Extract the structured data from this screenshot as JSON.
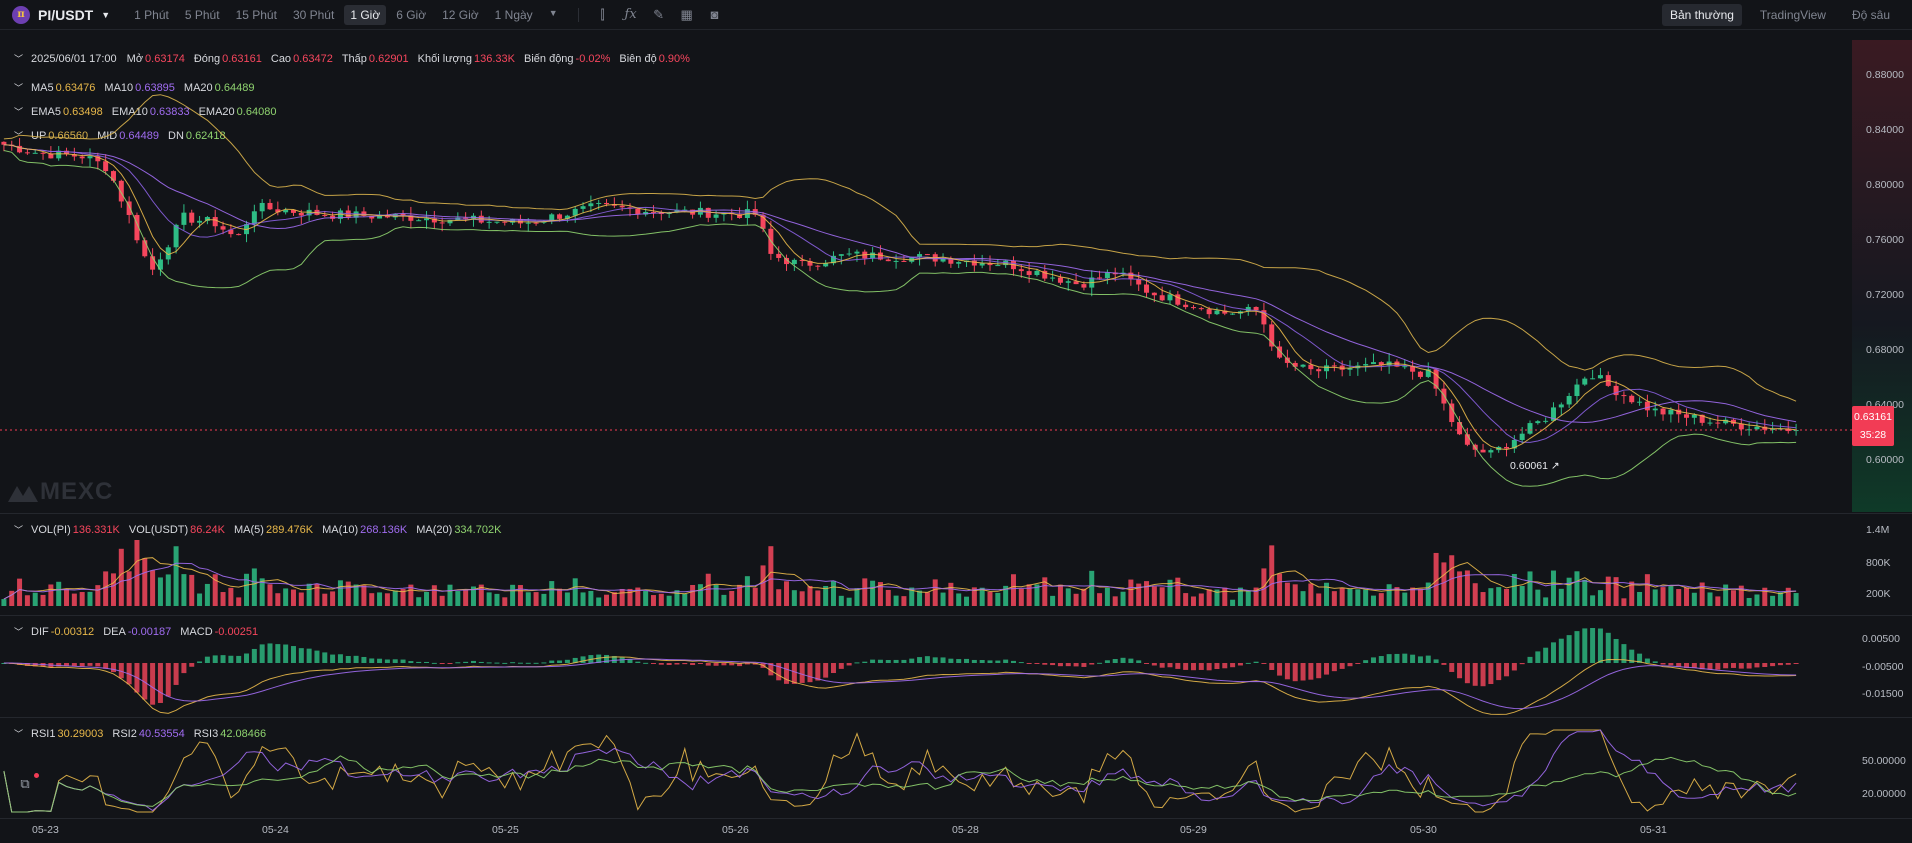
{
  "toolbar": {
    "pair": "PI/USDT",
    "logo_glyph": "π",
    "intervals": [
      "1 Phút",
      "5 Phút",
      "15 Phút",
      "30 Phút",
      "1 Giờ",
      "6 Giờ",
      "12 Giờ",
      "1 Ngày"
    ],
    "active_interval": "1 Giờ",
    "icons": [
      "candle-type-icon",
      "indicator-fx-icon",
      "draw-pencil-icon",
      "layout-grid-icon",
      "camera-icon"
    ],
    "views": [
      "Bản thường",
      "TradingView",
      "Độ sâu"
    ],
    "active_view": "Bản thường"
  },
  "ohlc": {
    "date": "2025/06/01 17:00",
    "open_label": "Mở",
    "open": "0.63174",
    "close_label": "Đóng",
    "close": "0.63161",
    "high_label": "Cao",
    "high": "0.63472",
    "low_label": "Thấp",
    "low": "0.62901",
    "volume_label": "Khối lượng",
    "volume": "136.33K",
    "change_label": "Biến động",
    "change": "-0.02%",
    "amplitude_label": "Biên độ",
    "amplitude": "0.90%"
  },
  "ma": {
    "ma5_label": "MA5",
    "ma5": "0.63476",
    "ma10_label": "MA10",
    "ma10": "0.63895",
    "ma20_label": "MA20",
    "ma20": "0.64489"
  },
  "ema": {
    "ema5_label": "EMA5",
    "ema5": "0.63498",
    "ema10_label": "EMA10",
    "ema10": "0.63833",
    "ema20_label": "EMA20",
    "ema20": "0.64080"
  },
  "boll": {
    "up_label": "UP",
    "up": "0.66560",
    "mid_label": "MID",
    "mid": "0.64489",
    "dn_label": "DN",
    "dn": "0.62418"
  },
  "vol": {
    "vol_pi_label": "VOL(PI)",
    "vol_pi": "136.331K",
    "vol_usdt_label": "VOL(USDT)",
    "vol_usdt": "86.24K",
    "ma5_label": "MA(5)",
    "ma5": "289.476K",
    "ma10_label": "MA(10)",
    "ma10": "268.136K",
    "ma20_label": "MA(20)",
    "ma20": "334.702K"
  },
  "macd": {
    "dif_label": "DIF",
    "dif": "-0.00312",
    "dea_label": "DEA",
    "dea": "-0.00187",
    "macd_label": "MACD",
    "macd": "-0.00251"
  },
  "rsi": {
    "rsi1_label": "RSI1",
    "rsi1": "30.29003",
    "rsi2_label": "RSI2",
    "rsi2": "40.53554",
    "rsi3_label": "RSI3",
    "rsi3": "42.08466"
  },
  "price_axis": [
    "0.88000",
    "0.84000",
    "0.80000",
    "0.76000",
    "0.72000",
    "0.68000",
    "0.64000",
    "0.60000"
  ],
  "vol_axis": [
    "1.4M",
    "800K",
    "200K"
  ],
  "macd_axis": [
    "0.00500",
    "-0.00500",
    "-0.01500"
  ],
  "rsi_axis": [
    "50.00000",
    "20.00000"
  ],
  "dates": [
    "05-23",
    "05-24",
    "05-25",
    "05-26",
    "05-28",
    "05-29",
    "05-30",
    "05-31"
  ],
  "current_price": "0.63161",
  "countdown": "35:28",
  "low_marker": "0.60061",
  "watermark": "MEXC",
  "colors": {
    "up": "#2ebd85",
    "down": "#f6465d",
    "ma5": "#e8b84a",
    "ma10": "#a06cf0",
    "ma20": "#8fd36f",
    "boll": "#d9b24c",
    "background": "#121418"
  },
  "chart_data": {
    "type": "candlestick",
    "interval": "1 Giờ",
    "x_ticks": [
      "05-23",
      "05-24",
      "05-25",
      "05-26",
      "05-28",
      "05-29",
      "05-30",
      "05-31"
    ],
    "ylim": [
      0.58,
      0.9
    ],
    "anchors": [
      [
        0.0,
        0.828
      ],
      [
        0.02,
        0.822
      ],
      [
        0.045,
        0.82
      ],
      [
        0.058,
        0.812
      ],
      [
        0.07,
        0.778
      ],
      [
        0.082,
        0.74
      ],
      [
        0.1,
        0.778
      ],
      [
        0.118,
        0.774
      ],
      [
        0.13,
        0.763
      ],
      [
        0.14,
        0.785
      ],
      [
        0.155,
        0.783
      ],
      [
        0.18,
        0.78
      ],
      [
        0.23,
        0.778
      ],
      [
        0.29,
        0.774
      ],
      [
        0.33,
        0.785
      ],
      [
        0.37,
        0.782
      ],
      [
        0.42,
        0.78
      ],
      [
        0.428,
        0.752
      ],
      [
        0.445,
        0.745
      ],
      [
        0.47,
        0.752
      ],
      [
        0.52,
        0.75
      ],
      [
        0.56,
        0.746
      ],
      [
        0.6,
        0.732
      ],
      [
        0.62,
        0.74
      ],
      [
        0.64,
        0.726
      ],
      [
        0.68,
        0.712
      ],
      [
        0.7,
        0.714
      ],
      [
        0.712,
        0.678
      ],
      [
        0.73,
        0.672
      ],
      [
        0.77,
        0.676
      ],
      [
        0.795,
        0.67
      ],
      [
        0.815,
        0.62
      ],
      [
        0.83,
        0.615
      ],
      [
        0.86,
        0.64
      ],
      [
        0.885,
        0.672
      ],
      [
        0.895,
        0.662
      ],
      [
        0.92,
        0.645
      ],
      [
        0.96,
        0.636
      ],
      [
        1.0,
        0.6316
      ]
    ]
  }
}
